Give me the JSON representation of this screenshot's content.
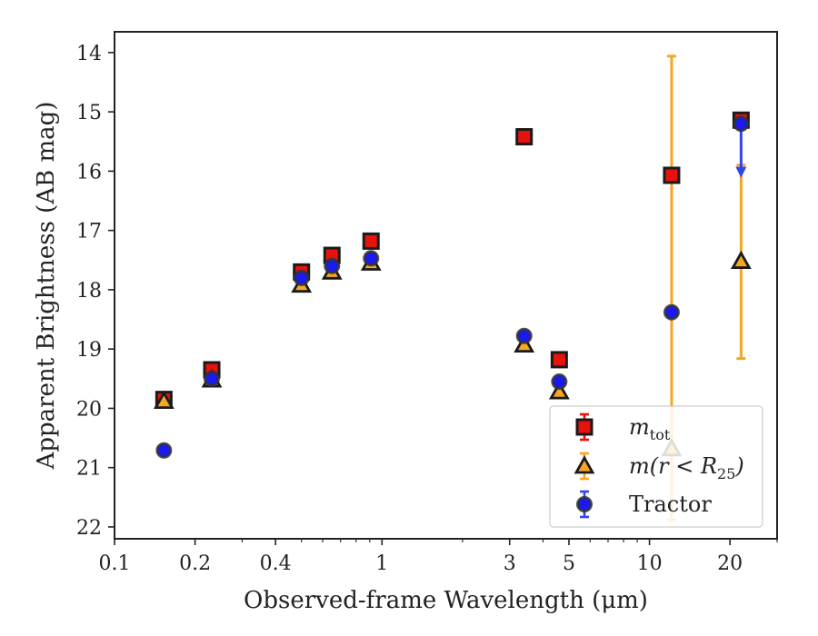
{
  "chart_data": {
    "type": "scatter",
    "xlabel": "Observed-frame Wavelength (μm)",
    "ylabel": "Apparent Brightness (AB mag)",
    "xscale": "log",
    "xlim": [
      0.1,
      30
    ],
    "ylim": [
      22.2,
      13.65
    ],
    "y_inverted": true,
    "x_ticks": [
      {
        "value": 0.1,
        "label": "0.1"
      },
      {
        "value": 0.2,
        "label": "0.2"
      },
      {
        "value": 0.4,
        "label": "0.4"
      },
      {
        "value": 1,
        "label": "1"
      },
      {
        "value": 3,
        "label": "3"
      },
      {
        "value": 5,
        "label": "5"
      },
      {
        "value": 10,
        "label": "10"
      },
      {
        "value": 20,
        "label": "20"
      }
    ],
    "y_ticks": [
      {
        "value": 14,
        "label": "14"
      },
      {
        "value": 15,
        "label": "15"
      },
      {
        "value": 16,
        "label": "16"
      },
      {
        "value": 17,
        "label": "17"
      },
      {
        "value": 18,
        "label": "18"
      },
      {
        "value": 19,
        "label": "19"
      },
      {
        "value": 20,
        "label": "20"
      },
      {
        "value": 21,
        "label": "21"
      },
      {
        "value": 22,
        "label": "22"
      }
    ],
    "grid": false,
    "legend_position": "lower-right",
    "series": [
      {
        "name": "m_tot",
        "legend_label": {
          "base": "m",
          "sub": "tot"
        },
        "marker": "square",
        "color": "#e8120c",
        "edge_color": "#1a1a1a",
        "points": [
          {
            "x": 0.153,
            "y": 19.85
          },
          {
            "x": 0.231,
            "y": 19.35
          },
          {
            "x": 0.5,
            "y": 17.7
          },
          {
            "x": 0.65,
            "y": 17.42
          },
          {
            "x": 0.91,
            "y": 17.18
          },
          {
            "x": 3.4,
            "y": 15.42
          },
          {
            "x": 4.6,
            "y": 19.18
          },
          {
            "x": 12.1,
            "y": 16.07
          },
          {
            "x": 22.0,
            "y": 15.14
          }
        ]
      },
      {
        "name": "m(r < R25)",
        "legend_label": {
          "base": "m(r < R",
          "sub": "25",
          "close": ")"
        },
        "marker": "triangle",
        "color": "#f5a623",
        "edge_color": "#1a1a1a",
        "points": [
          {
            "x": 0.153,
            "y": 19.88
          },
          {
            "x": 0.231,
            "y": 19.52
          },
          {
            "x": 0.5,
            "y": 17.92
          },
          {
            "x": 0.65,
            "y": 17.7
          },
          {
            "x": 0.91,
            "y": 17.55
          },
          {
            "x": 3.4,
            "y": 18.93
          },
          {
            "x": 4.6,
            "y": 19.72
          },
          {
            "x": 12.1,
            "y": 20.68,
            "err_low": 6.62,
            "err_high": 1.2
          },
          {
            "x": 22.0,
            "y": 17.52,
            "err_low": 1.62,
            "err_high": 1.64
          }
        ]
      },
      {
        "name": "Tractor",
        "legend_label": {
          "base": "Tractor"
        },
        "marker": "circle",
        "color": "#1a1af0",
        "edge_color": "#333333",
        "points": [
          {
            "x": 0.153,
            "y": 20.71
          },
          {
            "x": 0.231,
            "y": 19.5
          },
          {
            "x": 0.5,
            "y": 17.8
          },
          {
            "x": 0.65,
            "y": 17.6
          },
          {
            "x": 0.91,
            "y": 17.47
          },
          {
            "x": 3.4,
            "y": 18.78
          },
          {
            "x": 4.6,
            "y": 19.55
          },
          {
            "x": 12.1,
            "y": 18.38
          },
          {
            "x": 22.0,
            "y": 15.2,
            "upper_limit_to": 16.05
          }
        ]
      }
    ]
  }
}
